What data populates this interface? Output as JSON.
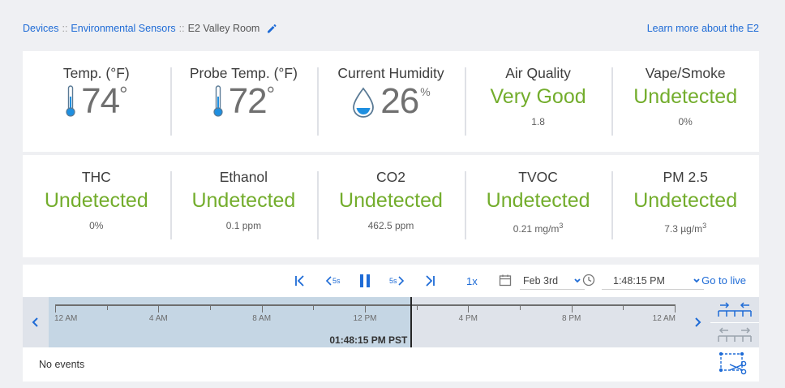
{
  "breadcrumb": {
    "items": [
      "Devices",
      "Environmental Sensors"
    ],
    "separator": "::",
    "current": "E2 Valley Room"
  },
  "learn_more": "Learn more about the E2",
  "sensors": {
    "temp": {
      "label": "Temp. (°F)",
      "value": "74",
      "unit": "°",
      "icon": "thermometer-icon"
    },
    "probe": {
      "label": "Probe Temp. (°F)",
      "value": "72",
      "unit": "°",
      "icon": "thermometer-icon"
    },
    "humidity": {
      "label": "Current Humidity",
      "value": "26",
      "unit": "%",
      "icon": "water-drop-icon"
    },
    "air_quality": {
      "label": "Air Quality",
      "status": "Very Good",
      "sub": "1.8"
    },
    "vape": {
      "label": "Vape/Smoke",
      "status": "Undetected",
      "sub": "0%"
    },
    "thc": {
      "label": "THC",
      "status": "Undetected",
      "sub": "0%"
    },
    "ethanol": {
      "label": "Ethanol",
      "status": "Undetected",
      "sub": "0.1 ppm"
    },
    "co2": {
      "label": "CO2",
      "status": "Undetected",
      "sub": "462.5 ppm"
    },
    "tvoc": {
      "label": "TVOC",
      "status": "Undetected",
      "sub": "0.21 mg/m",
      "sub_sup": "3"
    },
    "pm25": {
      "label": "PM 2.5",
      "status": "Undetected",
      "sub": "7.3 µg/m",
      "sub_sup": "3"
    }
  },
  "controls": {
    "back_5s": "5s",
    "fwd_5s": "5s",
    "speed": "1x",
    "date": "Feb 3rd",
    "time": "1:48:15 PM",
    "go_live": "Go to live"
  },
  "timeline": {
    "ticks": [
      "12 AM",
      "4 AM",
      "8 AM",
      "12 PM",
      "4 PM",
      "8 PM",
      "12 AM"
    ],
    "current_time": "01:48:15 PM PST",
    "current_fraction": 0.5751
  },
  "events_text": "No events",
  "colors": {
    "accent": "#1e6bd6",
    "good": "#73ad2c",
    "past": "#c5d6e4",
    "track": "#dfe3ea"
  }
}
